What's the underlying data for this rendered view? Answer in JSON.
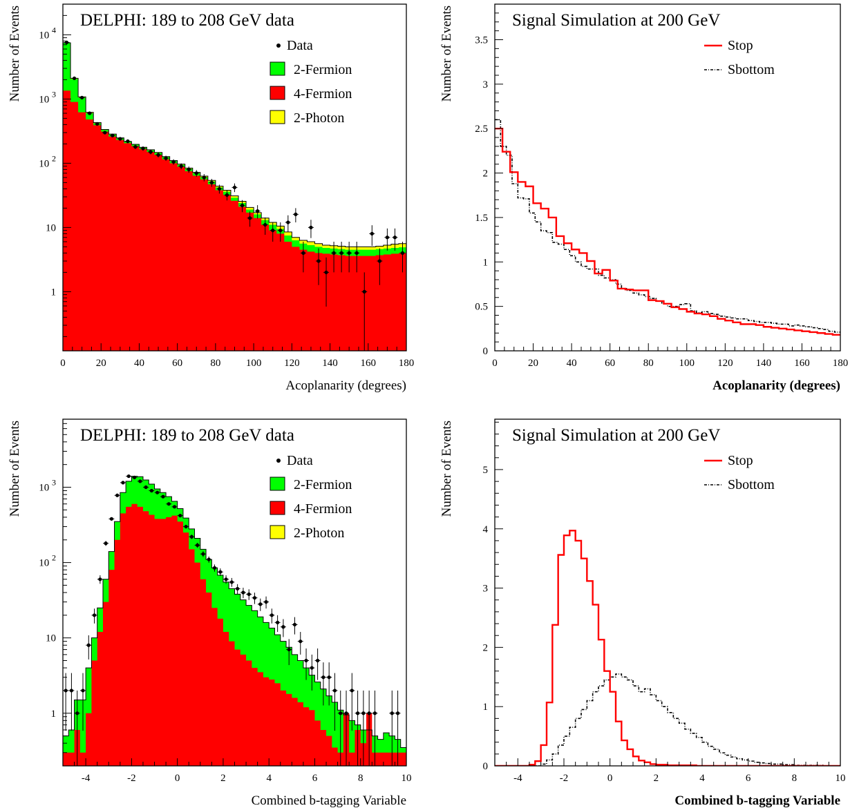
{
  "chart_data": [
    {
      "type": "area",
      "id": "acop-data",
      "title": "DELPHI: 189 to 208 GeV data",
      "xlabel": "Acoplanarity (degrees)",
      "ylabel": "Number of Events",
      "xlim": [
        0,
        180
      ],
      "ylim": [
        0.12,
        30000
      ],
      "yscale": "log",
      "legend_position": "top-right",
      "xticks": [
        0,
        20,
        40,
        60,
        80,
        100,
        120,
        140,
        160,
        180
      ],
      "yticks": [
        1,
        10,
        100,
        1000,
        10000
      ],
      "yticklabels": [
        "1",
        "10",
        "10 2",
        "10 3",
        "10 4"
      ],
      "bin_width": 4,
      "series": [
        {
          "name": "4-Fermion",
          "color": "#ff0000",
          "style": "filled",
          "values": [
            1350,
            900,
            620,
            480,
            390,
            310,
            260,
            230,
            205,
            185,
            165,
            150,
            135,
            115,
            100,
            88,
            75,
            64,
            56,
            47,
            38,
            32,
            26,
            21,
            17,
            14,
            11,
            9,
            8,
            6,
            5,
            4.5,
            4.2,
            4,
            3.9,
            3.8,
            3.7,
            3.6,
            3.6,
            3.6,
            3.6,
            3.7,
            3.8,
            3.9,
            4
          ]
        },
        {
          "name": "2-Fermion",
          "color": "#00ff00",
          "style": "filled",
          "values": [
            7400,
            2050,
            1050,
            600,
            420,
            330,
            280,
            245,
            215,
            195,
            175,
            160,
            145,
            125,
            108,
            95,
            82,
            70,
            61,
            52,
            42,
            36,
            29,
            24,
            19,
            16,
            13,
            11,
            9.5,
            7.5,
            6.3,
            5.6,
            5.3,
            5,
            4.8,
            4.7,
            4.6,
            4.5,
            4.5,
            4.5,
            4.5,
            4.6,
            4.7,
            4.8,
            4.9
          ]
        },
        {
          "name": "2-Photon",
          "color": "#ffff00",
          "style": "filled",
          "values": [
            7500,
            2100,
            1080,
            620,
            430,
            335,
            285,
            248,
            218,
            197,
            177,
            162,
            147,
            127,
            110,
            97,
            84,
            72,
            63,
            54,
            44,
            38,
            31,
            25.5,
            20.5,
            17,
            14,
            12,
            10.5,
            8.5,
            7,
            6.3,
            6,
            5.6,
            5.3,
            5.2,
            5.1,
            5,
            5,
            5,
            5,
            5.1,
            5.3,
            5.5,
            5.6
          ]
        },
        {
          "name": "Data",
          "color": "#000000",
          "style": "points",
          "values": [
            7600,
            2100,
            1050,
            600,
            410,
            300,
            270,
            240,
            220,
            180,
            170,
            150,
            135,
            120,
            105,
            90,
            80,
            70,
            60,
            50,
            40,
            32,
            42,
            22,
            14,
            18,
            11,
            9,
            9,
            12,
            16,
            4,
            10,
            3,
            2,
            4,
            4,
            4,
            4,
            1,
            8,
            3,
            7,
            7,
            4
          ]
        }
      ]
    },
    {
      "type": "line",
      "id": "acop-sim",
      "title": "Signal Simulation at 200 GeV",
      "xlabel": "Acoplanarity (degrees)",
      "ylabel": "Number of Events",
      "xlim": [
        0,
        180
      ],
      "ylim": [
        0,
        3.9
      ],
      "legend_position": "top-right",
      "xticks": [
        0,
        20,
        40,
        60,
        80,
        100,
        120,
        140,
        160,
        180
      ],
      "yticks": [
        0,
        0.5,
        1,
        1.5,
        2,
        2.5,
        3,
        3.5
      ],
      "yticklabels": [
        "0",
        "0.5",
        "1",
        "1.5",
        "2",
        "2.5",
        "3",
        "3.5"
      ],
      "series": [
        {
          "name": "Stop",
          "color": "#ff0000",
          "style": "solid",
          "bin_width": 4,
          "values": [
            2.5,
            2.24,
            2.01,
            1.9,
            1.85,
            1.66,
            1.6,
            1.5,
            1.29,
            1.21,
            1.14,
            1.1,
            1.01,
            0.87,
            0.91,
            0.79,
            0.7,
            0.69,
            0.68,
            0.68,
            0.57,
            0.56,
            0.53,
            0.49,
            0.47,
            0.44,
            0.42,
            0.41,
            0.39,
            0.36,
            0.34,
            0.32,
            0.3,
            0.3,
            0.29,
            0.27,
            0.26,
            0.25,
            0.24,
            0.23,
            0.22,
            0.21,
            0.2,
            0.19,
            0.18
          ]
        },
        {
          "name": "Sbottom",
          "color": "#000000",
          "style": "dashdot",
          "bin_width": 3,
          "values": [
            2.6,
            2.3,
            2.2,
            1.88,
            1.72,
            1.71,
            1.55,
            1.45,
            1.35,
            1.33,
            1.22,
            1.2,
            1.14,
            1.07,
            1.0,
            0.95,
            0.92,
            0.92,
            0.85,
            0.82,
            0.8,
            0.75,
            0.7,
            0.68,
            0.65,
            0.63,
            0.61,
            0.59,
            0.56,
            0.53,
            0.5,
            0.5,
            0.52,
            0.53,
            0.45,
            0.43,
            0.44,
            0.42,
            0.41,
            0.39,
            0.38,
            0.37,
            0.36,
            0.36,
            0.34,
            0.33,
            0.32,
            0.32,
            0.31,
            0.3,
            0.3,
            0.28,
            0.29,
            0.28,
            0.27,
            0.26,
            0.25,
            0.24,
            0.22,
            0.21
          ]
        }
      ]
    },
    {
      "type": "area",
      "id": "btag-data",
      "title": "DELPHI: 189 to 208 GeV data",
      "xlabel": "Combined b-tagging Variable",
      "ylabel": "Number of Events",
      "xlim": [
        -5,
        10
      ],
      "ylim": [
        0.2,
        8000
      ],
      "yscale": "log",
      "legend_position": "top-right",
      "xticks": [
        -4,
        -2,
        0,
        2,
        4,
        6,
        8,
        10
      ],
      "yticks": [
        1,
        10,
        100,
        1000
      ],
      "yticklabels": [
        "1",
        "10",
        "10 2",
        "10 3"
      ],
      "bin_width": 0.25,
      "series": [
        {
          "name": "4-Fermion",
          "color": "#ff0000",
          "style": "filled",
          "values": [
            0.3,
            0.3,
            0.6,
            0.3,
            1,
            5,
            12,
            30,
            80,
            200,
            450,
            550,
            600,
            550,
            480,
            430,
            380,
            380,
            400,
            420,
            350,
            250,
            150,
            100,
            60,
            40,
            25,
            18,
            12,
            9,
            7,
            6,
            5,
            4,
            3.5,
            3,
            2.8,
            2.5,
            2,
            1.8,
            1.6,
            1.4,
            1.2,
            1.1,
            0.8,
            0.6,
            0.5,
            0.35,
            0.3,
            1,
            0.3,
            0.6,
            0.4,
            1,
            0.3,
            0.3,
            0.3,
            0.3,
            0.3,
            0.3
          ]
        },
        {
          "name": "2-Fermion",
          "color": "#00ff00",
          "style": "filled",
          "values": [
            0.5,
            0.6,
            1.5,
            1.5,
            4,
            10,
            25,
            60,
            140,
            350,
            850,
            1200,
            1400,
            1380,
            1250,
            1100,
            950,
            850,
            750,
            650,
            520,
            390,
            280,
            210,
            150,
            110,
            85,
            68,
            55,
            45,
            38,
            32,
            27,
            23,
            19,
            16,
            13.5,
            11,
            9,
            7.5,
            6,
            5,
            4,
            3.2,
            2.6,
            2.1,
            1.7,
            1.4,
            1.1,
            0.95,
            0.8,
            0.7,
            0.6,
            0.6,
            0.5,
            0.45,
            0.55,
            0.5,
            0.45,
            0.35
          ]
        },
        {
          "name": "2-Photon",
          "color": "#ffff00",
          "style": "filled",
          "values": [
            0.5,
            0.6,
            1.5,
            1.5,
            4,
            10,
            25,
            60,
            140,
            350,
            850,
            1200,
            1400,
            1380,
            1250,
            1100,
            950,
            850,
            750,
            650,
            520,
            390,
            280,
            210,
            150,
            110,
            85,
            68,
            55,
            45,
            38,
            32,
            27,
            23,
            19,
            16,
            13.5,
            11,
            9,
            7.5,
            6,
            5,
            4,
            3.2,
            2.6,
            2.1,
            1.7,
            1.4,
            1.1,
            0.95,
            0.8,
            0.7,
            0.6,
            0.6,
            0.5,
            0.45,
            0.55,
            0.5,
            0.45,
            0.35
          ]
        },
        {
          "name": "Data",
          "color": "#000000",
          "style": "points",
          "values": [
            2,
            2,
            1,
            2,
            8,
            20,
            60,
            180,
            380,
            780,
            1150,
            1400,
            1350,
            1200,
            1000,
            900,
            850,
            750,
            600,
            550,
            420,
            300,
            220,
            170,
            130,
            110,
            85,
            75,
            60,
            55,
            45,
            40,
            38,
            34,
            28,
            30,
            20,
            16,
            14,
            7,
            15,
            9,
            5,
            4,
            5,
            3,
            3,
            2,
            1,
            1,
            2,
            1,
            1,
            1,
            1,
            0,
            0,
            1,
            1,
            0
          ]
        }
      ]
    },
    {
      "type": "line",
      "id": "btag-sim",
      "title": "Signal Simulation at 200 GeV",
      "xlabel": "Combined b-tagging Variable",
      "ylabel": "Number of Events",
      "xlim": [
        -5,
        10
      ],
      "ylim": [
        0,
        5.85
      ],
      "legend_position": "top-right",
      "xticks": [
        -4,
        -2,
        0,
        2,
        4,
        6,
        8,
        10
      ],
      "yticks": [
        0,
        1,
        2,
        3,
        4,
        5
      ],
      "yticklabels": [
        "0",
        "1",
        "2",
        "3",
        "4",
        "5"
      ],
      "series": [
        {
          "name": "Stop",
          "color": "#ff0000",
          "style": "solid",
          "bin_width": 0.25,
          "values": [
            0,
            0,
            0,
            0,
            0,
            0,
            0.02,
            0.08,
            0.35,
            1.07,
            2.38,
            3.56,
            3.89,
            3.97,
            3.8,
            3.5,
            3.12,
            2.72,
            2.13,
            1.6,
            1.25,
            0.75,
            0.43,
            0.28,
            0.16,
            0.09,
            0.06,
            0.03,
            0.02,
            0.02,
            0.01,
            0.01,
            0.01,
            0.01,
            0.01,
            0,
            0,
            0,
            0,
            0,
            0,
            0,
            0,
            0,
            0,
            0,
            0,
            0,
            0,
            0,
            0,
            0,
            0,
            0,
            0,
            0,
            0,
            0,
            0,
            0
          ]
        },
        {
          "name": "Sbottom",
          "color": "#000000",
          "style": "dashdot",
          "bin_width": 0.25,
          "values": [
            0,
            0,
            0,
            0,
            0,
            0,
            0,
            0,
            0.03,
            0.1,
            0.2,
            0.35,
            0.5,
            0.65,
            0.8,
            0.95,
            1.1,
            1.25,
            1.35,
            1.45,
            1.5,
            1.55,
            1.5,
            1.45,
            1.35,
            1.25,
            1.3,
            1.2,
            1.1,
            1.0,
            0.9,
            0.8,
            0.72,
            0.62,
            0.55,
            0.48,
            0.4,
            0.33,
            0.28,
            0.22,
            0.18,
            0.15,
            0.12,
            0.1,
            0.08,
            0.06,
            0.05,
            0.04,
            0.03,
            0.03,
            0.02,
            0.02,
            0.01,
            0.01,
            0.01,
            0.01,
            0.01,
            0,
            0,
            0
          ]
        }
      ]
    }
  ]
}
